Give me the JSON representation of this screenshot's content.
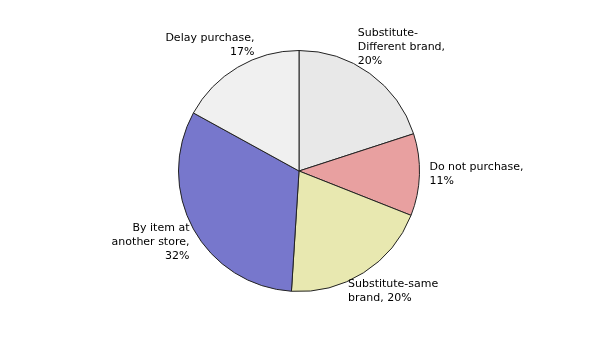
{
  "chart_data": {
    "type": "pie",
    "categories": [
      "Substitute-\nDifferent brand,\n20%",
      "Do not purchase,\n11%",
      "Substitute-same\nbrand, 20%",
      "By item at\nanother store,\n32%",
      "Delay purchase,\n17%"
    ],
    "values": [
      20,
      11,
      20,
      32,
      17
    ],
    "colors": [
      "#e8e8e8",
      "#e8a0a0",
      "#e8e8b0",
      "#7777cc",
      "#f0f0f0"
    ]
  }
}
